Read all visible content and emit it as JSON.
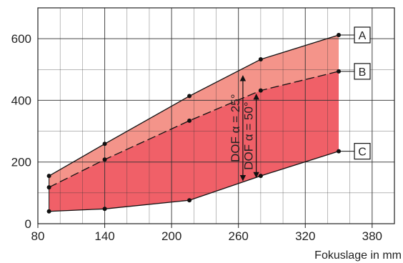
{
  "chart_data": {
    "type": "area",
    "title": "",
    "xlabel": "Fokuslage in mm",
    "ylabel": "",
    "xlim": [
      80,
      400
    ],
    "ylim": [
      0,
      700
    ],
    "x_ticks": [
      80,
      140,
      200,
      260,
      320,
      380
    ],
    "y_ticks": [
      0,
      200,
      400,
      600
    ],
    "x_tick_labels": [
      "80",
      "140",
      "200",
      "260",
      "320",
      "380"
    ],
    "y_tick_labels": [
      "0",
      "200",
      "400",
      "600"
    ],
    "grid": true,
    "x_minor_step": 20,
    "y_minor_step": 100,
    "colors": {
      "band_upper": "#f4948a",
      "band_lower": "#f06068",
      "line": "#111111",
      "grid": "#333333"
    },
    "series": [
      {
        "name": "A",
        "x": [
          90,
          140,
          216,
          280,
          350
        ],
        "y": [
          155,
          259,
          414,
          533,
          612
        ]
      },
      {
        "name": "B",
        "x": [
          90,
          140,
          216,
          280,
          350
        ],
        "y": [
          118,
          208,
          334,
          432,
          494
        ]
      },
      {
        "name": "C",
        "x": [
          90,
          140,
          216,
          280,
          350
        ],
        "y": [
          40,
          48,
          76,
          155,
          235
        ]
      }
    ],
    "annotations": [
      {
        "text": "DOF α = 25°",
        "x": 264,
        "y_from": 480,
        "y_to": 140
      },
      {
        "text": "DOF α = 50°",
        "x": 276,
        "y_from": 420,
        "y_to": 150
      }
    ]
  }
}
